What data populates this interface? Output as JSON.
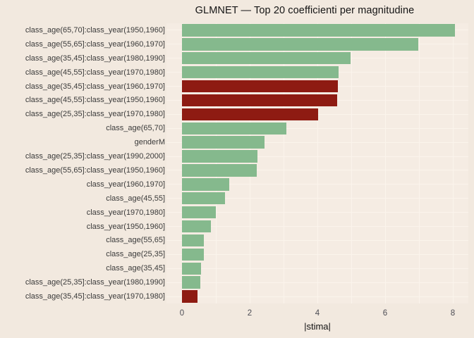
{
  "chart_data": {
    "type": "bar",
    "orientation": "horizontal",
    "title": "GLMNET — Top 20 coefficienti per magnitudine",
    "xlabel": "|stima|",
    "ylabel": "",
    "xlim": [
      -0.46,
      8.46
    ],
    "xticks": [
      0,
      2,
      4,
      6,
      8
    ],
    "grid": true,
    "legend": "none",
    "categories": [
      "class_age(65,70]:class_year(1950,1960]",
      "class_age(55,65]:class_year(1960,1970]",
      "class_age(35,45]:class_year(1980,1990]",
      "class_age(45,55]:class_year(1970,1980]",
      "class_age(35,45]:class_year(1960,1970]",
      "class_age(45,55]:class_year(1950,1960]",
      "class_age(25,35]:class_year(1970,1980]",
      "class_age(65,70]",
      "genderM",
      "class_age(25,35]:class_year(1990,2000]",
      "class_age(55,65]:class_year(1950,1960]",
      "class_year(1960,1970]",
      "class_age(45,55]",
      "class_year(1970,1980]",
      "class_year(1950,1960]",
      "class_age(55,65]",
      "class_age(25,35]",
      "class_age(35,45]",
      "class_age(25,35]:class_year(1980,1990]",
      "class_age(35,45]:class_year(1970,1980]"
    ],
    "values": [
      8.06,
      6.98,
      4.97,
      4.62,
      4.61,
      4.58,
      4.03,
      3.08,
      2.44,
      2.23,
      2.21,
      1.4,
      1.27,
      1.0,
      0.85,
      0.65,
      0.64,
      0.56,
      0.54,
      0.45
    ],
    "bar_signs": [
      "positive",
      "positive",
      "positive",
      "positive",
      "negative",
      "negative",
      "negative",
      "positive",
      "positive",
      "positive",
      "positive",
      "positive",
      "positive",
      "positive",
      "positive",
      "positive",
      "positive",
      "positive",
      "positive",
      "negative"
    ],
    "colors": {
      "positive": "#85b98d",
      "negative": "#8e1b12",
      "figure_background": "#f2e9df",
      "panel_background": "#f5ece3",
      "gridline": "#fbf4ec"
    }
  }
}
